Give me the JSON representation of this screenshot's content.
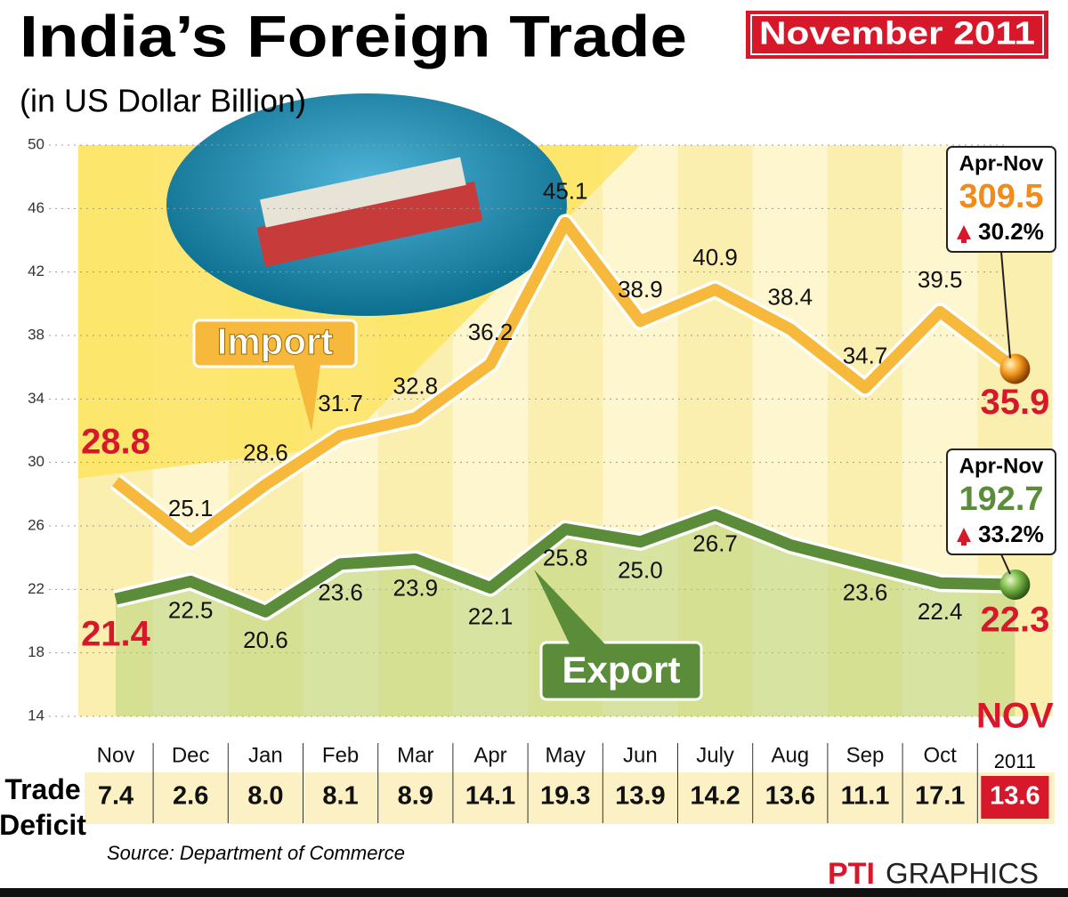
{
  "chart_data": {
    "type": "line",
    "title": "India’s Foreign Trade",
    "badge": "November 2011",
    "subtitle": "(in US Dollar Billion)",
    "categories": [
      "Nov",
      "Dec",
      "Jan",
      "Feb",
      "Mar",
      "Apr",
      "May",
      "Jun",
      "July",
      "Aug",
      "Sep",
      "Oct",
      "NOV"
    ],
    "year_label": "2011",
    "series": [
      {
        "name": "Import",
        "color": "#f6b93b",
        "values": [
          28.8,
          25.1,
          28.6,
          31.7,
          32.8,
          36.2,
          45.1,
          38.9,
          40.9,
          38.4,
          34.7,
          39.5,
          35.9
        ],
        "value_labels": [
          "28.8",
          "25.1",
          "28.6",
          "31.7",
          "32.8",
          "36.2",
          "45.1",
          "38.9",
          "40.9",
          "38.4",
          "34.7",
          "39.5",
          "35.9"
        ],
        "summary": {
          "period": "Apr-Nov",
          "total": "309.5",
          "growth": "30.2%"
        }
      },
      {
        "name": "Export",
        "color": "#5b8c3a",
        "values": [
          21.4,
          22.5,
          20.6,
          23.6,
          23.9,
          22.1,
          25.8,
          25.0,
          26.7,
          24.8,
          23.6,
          22.4,
          22.3
        ],
        "value_labels": [
          "21.4",
          "22.5",
          "20.6",
          "23.6",
          "23.9",
          "22.1",
          "25.8",
          "25.0",
          "26.7",
          null,
          "23.6",
          "22.4",
          "22.3"
        ],
        "summary": {
          "period": "Apr-Nov",
          "total": "192.7",
          "growth": "33.2%"
        }
      }
    ],
    "ylim": [
      14,
      50
    ],
    "yticks": [
      14,
      18,
      22,
      26,
      30,
      34,
      38,
      42,
      46,
      50
    ],
    "grid": true,
    "deficit_label": "Trade Deficit",
    "deficit": [
      "7.4",
      "2.6",
      "8.0",
      "8.1",
      "8.9",
      "14.1",
      "19.3",
      "13.9",
      "14.2",
      "13.6",
      "11.1",
      "17.1",
      "13.6"
    ],
    "source": "Source: Department of Commerce",
    "credit": {
      "brand": "PTI",
      "label": "GRAPHICS"
    }
  }
}
